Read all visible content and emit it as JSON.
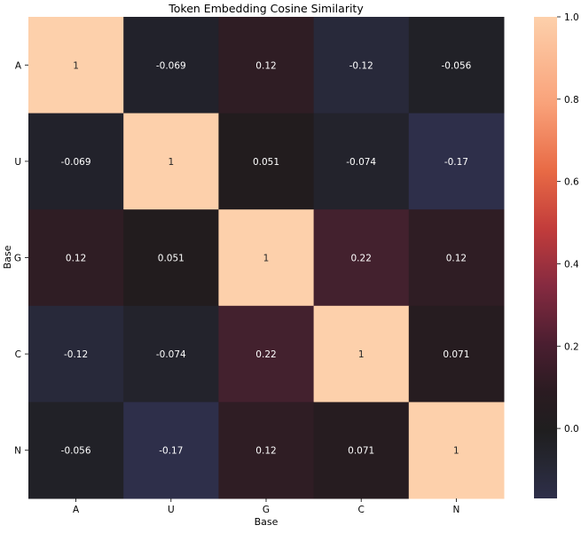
{
  "chart_data": {
    "type": "heatmap",
    "title": "Token Embedding Cosine Similarity",
    "xlabel": "Base",
    "ylabel": "Base",
    "x_categories": [
      "A",
      "U",
      "G",
      "C",
      "N"
    ],
    "y_categories": [
      "A",
      "U",
      "G",
      "C",
      "N"
    ],
    "values": [
      [
        1,
        -0.069,
        0.12,
        -0.12,
        -0.056
      ],
      [
        -0.069,
        1,
        0.051,
        -0.074,
        -0.17
      ],
      [
        0.12,
        0.051,
        1,
        0.22,
        0.12
      ],
      [
        -0.12,
        -0.074,
        0.22,
        1,
        0.071
      ],
      [
        -0.056,
        -0.17,
        0.12,
        0.071,
        1
      ]
    ],
    "annotations": [
      [
        "1",
        "-0.069",
        "0.12",
        "-0.12",
        "-0.056"
      ],
      [
        "-0.069",
        "1",
        "0.051",
        "-0.074",
        "-0.17"
      ],
      [
        "0.12",
        "0.051",
        "1",
        "0.22",
        "0.12"
      ],
      [
        "-0.12",
        "-0.074",
        "0.22",
        "1",
        "0.071"
      ],
      [
        "-0.056",
        "-0.17",
        "0.12",
        "0.071",
        "1"
      ]
    ],
    "colormap": "icefire (centered at 0)",
    "colorbar": {
      "range": [
        -0.17,
        1.0
      ],
      "ticks": [
        0.0,
        0.2,
        0.4,
        0.6,
        0.8,
        1.0
      ],
      "tick_labels": [
        "0.0",
        "0.2",
        "0.4",
        "0.6",
        "0.8",
        "1.0"
      ]
    },
    "legend": "colorbar at right",
    "grid": false
  }
}
